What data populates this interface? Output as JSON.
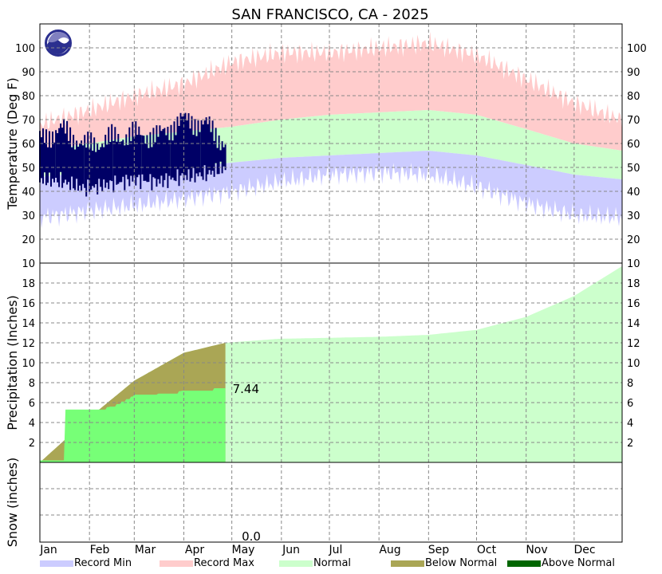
{
  "title": "SAN FRANCISCO, CA - 2025",
  "colors": {
    "record_min": "#ccccff",
    "record_max": "#ffcccc",
    "normal": "#ccffcc",
    "observed_temp": "#000066",
    "below_normal": "#aaa655",
    "above_normal": "#006600",
    "observed_precip": "#77ff77",
    "grid": "#888888"
  },
  "legend": {
    "items": [
      {
        "label": "Record Min",
        "color": "#ccccff"
      },
      {
        "label": "Record Max",
        "color": "#ffcccc"
      },
      {
        "label": "Normal",
        "color": "#ccffcc"
      },
      {
        "label": "Below Normal",
        "color": "#aaa655"
      },
      {
        "label": "Above Normal",
        "color": "#006600"
      }
    ]
  },
  "chart_data": [
    {
      "type": "area",
      "panel": "temperature",
      "ylabel": "Temperature (Deg F)",
      "ylim": [
        10,
        110
      ],
      "yticks": [
        20,
        30,
        40,
        50,
        60,
        70,
        80,
        90,
        100
      ],
      "yticks_both_sides": true,
      "months": [
        "Jan",
        "Feb",
        "Mar",
        "Apr",
        "May",
        "Jun",
        "Jul",
        "Aug",
        "Sep",
        "Oct",
        "Nov",
        "Dec"
      ],
      "grid": true,
      "series": [
        {
          "name": "Record Max",
          "x_day": [
            1,
            32,
            60,
            91,
            121,
            152,
            182,
            213,
            244,
            274,
            305,
            335,
            365
          ],
          "values": [
            68,
            74,
            80,
            85,
            94,
            98,
            98,
            100,
            102,
            97,
            87,
            77,
            70
          ]
        },
        {
          "name": "Normal",
          "x_day": [
            1,
            32,
            60,
            91,
            121,
            152,
            182,
            213,
            244,
            274,
            305,
            335,
            365
          ],
          "upper": [
            57,
            60,
            63,
            65,
            67,
            70,
            72,
            73,
            74,
            72,
            66,
            60,
            57
          ],
          "lower": [
            46,
            48,
            49,
            50,
            52,
            54,
            55,
            56,
            57,
            55,
            51,
            47,
            45
          ]
        },
        {
          "name": "Record Min",
          "x_day": [
            1,
            32,
            60,
            91,
            121,
            152,
            182,
            213,
            244,
            274,
            305,
            335,
            365
          ],
          "values": [
            29,
            32,
            34,
            37,
            40,
            44,
            47,
            48,
            47,
            42,
            35,
            30,
            29
          ]
        },
        {
          "name": "Observed",
          "x_day": [
            1,
            15,
            30,
            45,
            60,
            75,
            90,
            105,
            117
          ],
          "high": [
            62,
            66,
            59,
            62,
            64,
            63,
            70,
            68,
            60
          ],
          "low": [
            45,
            44,
            41,
            43,
            45,
            44,
            46,
            47,
            50
          ]
        }
      ]
    },
    {
      "type": "area",
      "panel": "precipitation",
      "ylabel": "Precipitation (Inches)",
      "ylim": [
        0,
        20
      ],
      "yticks": [
        2,
        4,
        6,
        8,
        10,
        12,
        14,
        16,
        18
      ],
      "yticks_both_sides": true,
      "top_label_both_sides": "10",
      "grid": true,
      "annotation": "7.44",
      "series": [
        {
          "name": "Normal",
          "x_day": [
            1,
            32,
            60,
            91,
            117,
            150,
            182,
            213,
            244,
            274,
            305,
            335,
            365
          ],
          "values": [
            0,
            4.5,
            8.2,
            11.0,
            12.0,
            12.4,
            12.5,
            12.6,
            12.8,
            13.3,
            14.6,
            16.7,
            19.7
          ]
        },
        {
          "name": "Observed",
          "x_day": [
            1,
            16,
            17,
            30,
            45,
            60,
            75,
            90,
            110,
            117
          ],
          "values": [
            0.2,
            0.2,
            5.3,
            5.3,
            5.6,
            6.8,
            6.9,
            7.2,
            7.44,
            7.44
          ]
        }
      ]
    },
    {
      "type": "area",
      "panel": "snow",
      "ylabel": "Snow (inches)",
      "annotation": "0.0",
      "grid": true
    }
  ]
}
